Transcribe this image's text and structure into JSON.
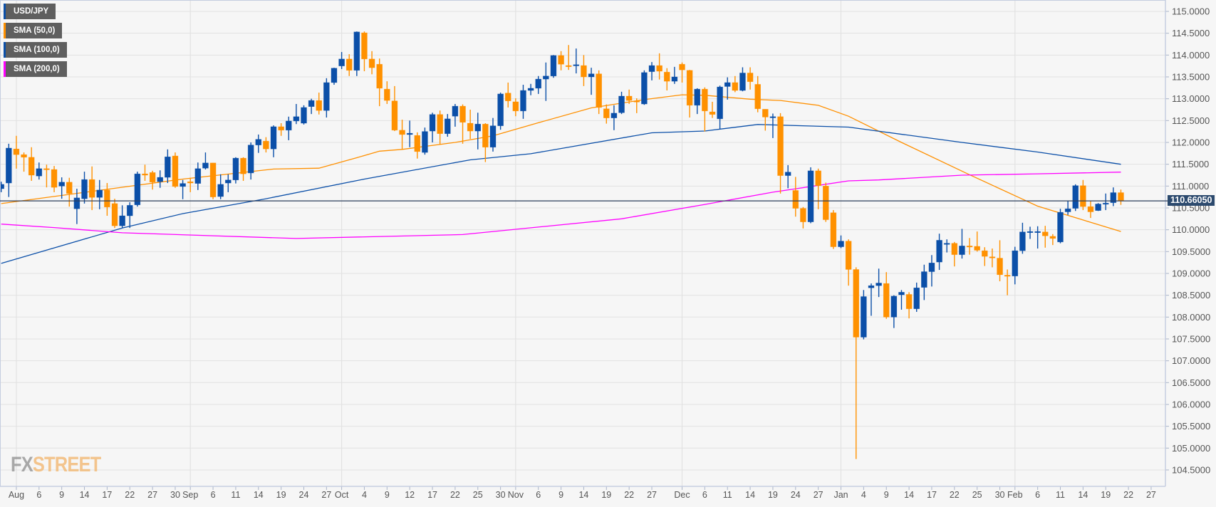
{
  "legend": [
    {
      "label": "USD/JPY",
      "color": "#0b4fa8"
    },
    {
      "label": "SMA (50,0)",
      "color": "#ff9000"
    },
    {
      "label": "SMA (100,0)",
      "color": "#0b4fa8"
    },
    {
      "label": "SMA (200,0)",
      "color": "#ff00ff"
    }
  ],
  "logo": {
    "part1": "FX",
    "part2": "STREET"
  },
  "current_price_label": "110.66050",
  "chart_data": {
    "type": "candlestick",
    "symbol": "USD/JPY",
    "current_price": 110.6605,
    "ylim": [
      104.5,
      115.0
    ],
    "y_ticks": [
      115.0,
      114.5,
      114.0,
      113.5,
      113.0,
      112.5,
      112.0,
      111.5,
      111.0,
      110.5,
      110.0,
      109.5,
      109.0,
      108.5,
      108.0,
      107.5,
      107.0,
      106.5,
      106.0,
      105.5,
      105.0,
      104.5
    ],
    "y_tick_labels": [
      "115.0000",
      "114.5000",
      "114.0000",
      "113.5000",
      "113.0000",
      "112.5000",
      "112.0000",
      "111.5000",
      "111.0000",
      "110.5000",
      "110.0000",
      "109.5000",
      "109.0000",
      "108.5000",
      "108.0000",
      "107.5000",
      "107.0000",
      "106.5000",
      "106.0000",
      "105.5000",
      "105.0000",
      "104.5000"
    ],
    "x_ticks": [
      {
        "label": "Aug",
        "at": 2,
        "month": true
      },
      {
        "label": "6",
        "at": 5
      },
      {
        "label": "9",
        "at": 8
      },
      {
        "label": "14",
        "at": 11
      },
      {
        "label": "17",
        "at": 14
      },
      {
        "label": "22",
        "at": 17
      },
      {
        "label": "27",
        "at": 20
      },
      {
        "label": "30",
        "at": 23
      },
      {
        "label": "Sep",
        "at": 25,
        "month": true
      },
      {
        "label": "6",
        "at": 28
      },
      {
        "label": "11",
        "at": 31
      },
      {
        "label": "14",
        "at": 34
      },
      {
        "label": "19",
        "at": 37
      },
      {
        "label": "24",
        "at": 40
      },
      {
        "label": "27",
        "at": 43
      },
      {
        "label": "Oct",
        "at": 45,
        "month": true
      },
      {
        "label": "4",
        "at": 48
      },
      {
        "label": "9",
        "at": 51
      },
      {
        "label": "12",
        "at": 54
      },
      {
        "label": "17",
        "at": 57
      },
      {
        "label": "22",
        "at": 60
      },
      {
        "label": "25",
        "at": 63
      },
      {
        "label": "30",
        "at": 66
      },
      {
        "label": "Nov",
        "at": 68,
        "month": true
      },
      {
        "label": "6",
        "at": 71
      },
      {
        "label": "9",
        "at": 74
      },
      {
        "label": "14",
        "at": 77
      },
      {
        "label": "19",
        "at": 80
      },
      {
        "label": "22",
        "at": 83
      },
      {
        "label": "27",
        "at": 86
      },
      {
        "label": "Dec",
        "at": 90,
        "month": true
      },
      {
        "label": "6",
        "at": 93
      },
      {
        "label": "11",
        "at": 96
      },
      {
        "label": "14",
        "at": 99
      },
      {
        "label": "19",
        "at": 102
      },
      {
        "label": "24",
        "at": 105
      },
      {
        "label": "27",
        "at": 108
      },
      {
        "label": "Jan",
        "at": 111,
        "month": true
      },
      {
        "label": "4",
        "at": 114
      },
      {
        "label": "9",
        "at": 117
      },
      {
        "label": "14",
        "at": 120
      },
      {
        "label": "17",
        "at": 123
      },
      {
        "label": "22",
        "at": 126
      },
      {
        "label": "25",
        "at": 129
      },
      {
        "label": "30",
        "at": 132
      },
      {
        "label": "Feb",
        "at": 134,
        "month": true
      },
      {
        "label": "6",
        "at": 137
      },
      {
        "label": "11",
        "at": 140
      },
      {
        "label": "14",
        "at": 143
      },
      {
        "label": "19",
        "at": 146
      },
      {
        "label": "22",
        "at": 149
      },
      {
        "label": "27",
        "at": 152
      }
    ],
    "ohlc_fields": [
      "open",
      "high",
      "low",
      "close"
    ],
    "candles": [
      [
        110.94,
        111.1,
        110.86,
        111.04
      ],
      [
        111.07,
        111.97,
        110.75,
        111.87
      ],
      [
        111.85,
        112.15,
        111.4,
        111.72
      ],
      [
        111.72,
        111.77,
        111.33,
        111.66
      ],
      [
        111.66,
        111.89,
        111.12,
        111.25
      ],
      [
        111.23,
        111.54,
        111.15,
        111.4
      ],
      [
        111.4,
        111.49,
        110.97,
        111.38
      ],
      [
        111.38,
        111.46,
        110.86,
        110.97
      ],
      [
        111.0,
        111.2,
        110.71,
        111.09
      ],
      [
        111.09,
        111.19,
        110.53,
        110.83
      ],
      [
        110.48,
        110.94,
        110.13,
        110.73
      ],
      [
        110.71,
        111.33,
        110.6,
        111.15
      ],
      [
        111.15,
        111.45,
        110.45,
        110.74
      ],
      [
        110.74,
        111.14,
        110.47,
        110.91
      ],
      [
        110.91,
        111.07,
        110.32,
        110.52
      ],
      [
        110.6,
        110.71,
        110.04,
        110.09
      ],
      [
        110.09,
        110.56,
        110.04,
        110.32
      ],
      [
        110.32,
        110.63,
        110.04,
        110.56
      ],
      [
        110.57,
        111.33,
        110.53,
        111.28
      ],
      [
        111.28,
        111.49,
        111.12,
        111.25
      ],
      [
        111.31,
        111.35,
        110.92,
        111.09
      ],
      [
        111.1,
        111.36,
        110.96,
        111.2
      ],
      [
        111.2,
        111.84,
        111.07,
        111.67
      ],
      [
        111.69,
        111.77,
        110.96,
        110.99
      ],
      [
        110.99,
        111.14,
        110.7,
        111.06
      ],
      [
        111.1,
        111.19,
        110.86,
        111.07
      ],
      [
        111.06,
        111.54,
        110.91,
        111.4
      ],
      [
        111.41,
        111.77,
        111.38,
        111.53
      ],
      [
        111.53,
        111.53,
        110.7,
        110.75
      ],
      [
        110.76,
        111.27,
        110.7,
        111.04
      ],
      [
        111.07,
        111.27,
        110.86,
        111.14
      ],
      [
        111.14,
        111.66,
        111.06,
        111.64
      ],
      [
        111.64,
        111.66,
        111.12,
        111.28
      ],
      [
        111.3,
        112.0,
        111.15,
        111.94
      ],
      [
        111.94,
        112.18,
        111.76,
        112.07
      ],
      [
        112.03,
        112.12,
        111.77,
        111.85
      ],
      [
        111.85,
        112.39,
        111.66,
        112.36
      ],
      [
        112.36,
        112.44,
        112.15,
        112.28
      ],
      [
        112.28,
        112.59,
        112.05,
        112.49
      ],
      [
        112.49,
        112.88,
        112.42,
        112.59
      ],
      [
        112.44,
        112.85,
        112.41,
        112.8
      ],
      [
        112.82,
        113.0,
        112.65,
        112.96
      ],
      [
        112.96,
        113.14,
        112.64,
        112.73
      ],
      [
        112.73,
        113.47,
        112.57,
        113.37
      ],
      [
        113.37,
        113.71,
        113.32,
        113.7
      ],
      [
        113.75,
        114.07,
        113.68,
        113.91
      ],
      [
        113.91,
        114.02,
        113.52,
        113.65
      ],
      [
        113.65,
        114.54,
        113.52,
        114.53
      ],
      [
        114.51,
        114.54,
        113.63,
        113.91
      ],
      [
        113.91,
        114.09,
        113.56,
        113.71
      ],
      [
        113.79,
        113.92,
        112.83,
        113.24
      ],
      [
        113.22,
        113.4,
        112.88,
        112.96
      ],
      [
        112.95,
        113.29,
        112.26,
        112.28
      ],
      [
        112.28,
        112.52,
        111.84,
        112.18
      ],
      [
        112.18,
        112.5,
        111.89,
        112.21
      ],
      [
        112.16,
        112.23,
        111.63,
        111.79
      ],
      [
        111.77,
        112.34,
        111.72,
        112.25
      ],
      [
        112.26,
        112.68,
        112.0,
        112.64
      ],
      [
        112.64,
        112.73,
        111.95,
        112.2
      ],
      [
        112.2,
        112.65,
        112.13,
        112.54
      ],
      [
        112.6,
        112.88,
        112.36,
        112.83
      ],
      [
        112.83,
        112.87,
        111.97,
        112.46
      ],
      [
        112.44,
        112.75,
        112.08,
        112.26
      ],
      [
        112.26,
        112.68,
        111.84,
        112.42
      ],
      [
        112.42,
        112.44,
        111.55,
        111.89
      ],
      [
        111.89,
        112.56,
        111.79,
        112.38
      ],
      [
        112.38,
        113.14,
        112.29,
        113.11
      ],
      [
        113.13,
        113.37,
        112.8,
        112.95
      ],
      [
        112.93,
        113.01,
        112.6,
        112.72
      ],
      [
        112.72,
        113.32,
        112.54,
        113.19
      ],
      [
        113.19,
        113.34,
        113.08,
        113.24
      ],
      [
        113.24,
        113.52,
        113.11,
        113.45
      ],
      [
        113.45,
        113.83,
        112.95,
        113.52
      ],
      [
        113.52,
        114.0,
        113.48,
        113.99
      ],
      [
        113.99,
        114.09,
        113.65,
        113.79
      ],
      [
        113.76,
        114.23,
        113.66,
        113.74
      ],
      [
        113.76,
        114.15,
        113.58,
        113.78
      ],
      [
        113.76,
        114.0,
        113.29,
        113.5
      ],
      [
        113.5,
        113.71,
        113.09,
        113.57
      ],
      [
        113.57,
        113.65,
        112.65,
        112.8
      ],
      [
        112.77,
        112.87,
        112.43,
        112.56
      ],
      [
        112.56,
        112.85,
        112.28,
        112.67
      ],
      [
        112.68,
        113.16,
        112.65,
        113.06
      ],
      [
        113.06,
        113.21,
        112.88,
        112.96
      ],
      [
        112.95,
        113.01,
        112.67,
        112.93
      ],
      [
        112.88,
        113.65,
        112.86,
        113.6
      ],
      [
        113.62,
        113.84,
        113.42,
        113.76
      ],
      [
        113.76,
        114.04,
        113.44,
        113.63
      ],
      [
        113.61,
        113.7,
        113.19,
        113.4
      ],
      [
        113.4,
        113.73,
        113.34,
        113.5
      ],
      [
        113.79,
        113.83,
        113.37,
        113.66
      ],
      [
        113.65,
        113.66,
        112.57,
        112.85
      ],
      [
        112.85,
        113.24,
        112.65,
        113.22
      ],
      [
        113.22,
        113.26,
        112.25,
        112.72
      ],
      [
        112.7,
        112.93,
        112.56,
        112.64
      ],
      [
        112.54,
        113.3,
        112.3,
        113.27
      ],
      [
        113.28,
        113.49,
        112.98,
        113.37
      ],
      [
        113.37,
        113.52,
        113.15,
        113.19
      ],
      [
        113.19,
        113.72,
        113.17,
        113.59
      ],
      [
        113.59,
        113.72,
        113.21,
        113.39
      ],
      [
        113.33,
        113.52,
        112.69,
        112.77
      ],
      [
        112.76,
        112.76,
        112.27,
        112.58
      ],
      [
        112.57,
        112.66,
        112.1,
        112.59
      ],
      [
        112.59,
        112.67,
        110.83,
        111.24
      ],
      [
        111.24,
        111.48,
        110.95,
        111.32
      ],
      [
        110.9,
        111.21,
        110.3,
        110.49
      ],
      [
        110.49,
        110.52,
        110.03,
        110.18
      ],
      [
        110.18,
        111.43,
        110.15,
        111.35
      ],
      [
        111.35,
        111.4,
        110.47,
        111.01
      ],
      [
        111.0,
        111.08,
        110.18,
        110.23
      ],
      [
        110.39,
        110.45,
        109.56,
        109.61
      ],
      [
        109.61,
        109.87,
        109.58,
        109.74
      ],
      [
        109.74,
        109.78,
        108.72,
        109.09
      ],
      [
        109.09,
        109.14,
        104.75,
        107.54
      ],
      [
        107.54,
        108.62,
        107.49,
        108.47
      ],
      [
        108.67,
        108.77,
        108.03,
        108.72
      ],
      [
        108.72,
        109.11,
        108.46,
        108.78
      ],
      [
        108.77,
        109.03,
        107.96,
        108.0
      ],
      [
        108.0,
        108.5,
        107.75,
        108.48
      ],
      [
        108.51,
        108.62,
        108.17,
        108.57
      ],
      [
        108.52,
        108.57,
        107.97,
        108.19
      ],
      [
        108.19,
        108.79,
        108.12,
        108.67
      ],
      [
        108.68,
        109.2,
        108.39,
        109.04
      ],
      [
        109.04,
        109.42,
        108.7,
        109.24
      ],
      [
        109.26,
        109.91,
        109.08,
        109.76
      ],
      [
        109.67,
        109.78,
        109.48,
        109.69
      ],
      [
        109.69,
        109.72,
        109.16,
        109.43
      ],
      [
        109.43,
        110.02,
        109.34,
        109.63
      ],
      [
        109.63,
        109.81,
        109.43,
        109.61
      ],
      [
        109.62,
        109.96,
        109.5,
        109.53
      ],
      [
        109.52,
        109.6,
        109.17,
        109.39
      ],
      [
        109.38,
        109.57,
        109.14,
        109.36
      ],
      [
        109.35,
        109.76,
        108.82,
        108.97
      ],
      [
        108.96,
        109.09,
        108.5,
        108.94
      ],
      [
        108.94,
        109.61,
        108.75,
        109.52
      ],
      [
        109.52,
        110.16,
        109.45,
        109.95
      ],
      [
        109.95,
        110.07,
        109.79,
        109.96
      ],
      [
        109.96,
        110.08,
        109.57,
        109.96
      ],
      [
        109.95,
        110.09,
        109.59,
        109.86
      ],
      [
        109.85,
        109.9,
        109.65,
        109.8
      ],
      [
        109.72,
        110.48,
        109.69,
        110.4
      ],
      [
        110.41,
        110.66,
        110.34,
        110.48
      ],
      [
        110.49,
        111.04,
        110.43,
        111.01
      ],
      [
        111.01,
        111.14,
        110.45,
        110.53
      ],
      [
        110.53,
        110.66,
        110.27,
        110.41
      ],
      [
        110.44,
        110.61,
        110.43,
        110.59
      ],
      [
        110.6,
        110.83,
        110.45,
        110.61
      ],
      [
        110.62,
        110.97,
        110.54,
        110.85
      ],
      [
        110.85,
        110.92,
        110.57,
        110.66
      ]
    ],
    "series": [
      {
        "name": "SMA (50,0)",
        "color": "#ff9000",
        "points": [
          [
            0,
            110.6
          ],
          [
            24,
            111.16
          ],
          [
            36,
            111.39
          ],
          [
            42,
            111.41
          ],
          [
            47,
            111.65
          ],
          [
            50,
            111.8
          ],
          [
            53,
            111.84
          ],
          [
            60,
            112.0
          ],
          [
            65,
            112.15
          ],
          [
            71,
            112.45
          ],
          [
            78,
            112.79
          ],
          [
            85,
            112.98
          ],
          [
            90,
            113.09
          ],
          [
            93,
            113.08
          ],
          [
            99,
            112.99
          ],
          [
            103,
            112.96
          ],
          [
            108,
            112.85
          ],
          [
            112,
            112.6
          ],
          [
            119,
            112.0
          ],
          [
            128,
            111.26
          ],
          [
            135,
            110.7
          ],
          [
            137,
            110.54
          ],
          [
            148,
            109.96
          ]
        ]
      },
      {
        "name": "SMA (100,0)",
        "color": "#0b4fa8",
        "points": [
          [
            0,
            109.23
          ],
          [
            16,
            110.04
          ],
          [
            24,
            110.37
          ],
          [
            35,
            110.71
          ],
          [
            48,
            111.16
          ],
          [
            62,
            111.6
          ],
          [
            70,
            111.74
          ],
          [
            86,
            112.22
          ],
          [
            93,
            112.26
          ],
          [
            100,
            112.41
          ],
          [
            112,
            112.35
          ],
          [
            127,
            112.0
          ],
          [
            137,
            111.78
          ],
          [
            148,
            111.5
          ]
        ]
      },
      {
        "name": "SMA (200,0)",
        "color": "#ff00ff",
        "points": [
          [
            0,
            110.13
          ],
          [
            7,
            110.05
          ],
          [
            16,
            109.93
          ],
          [
            39,
            109.8
          ],
          [
            61,
            109.89
          ],
          [
            82,
            110.25
          ],
          [
            93,
            110.58
          ],
          [
            102,
            110.86
          ],
          [
            112,
            111.12
          ],
          [
            116,
            111.14
          ],
          [
            127,
            111.25
          ],
          [
            137,
            111.28
          ],
          [
            148,
            111.32
          ]
        ]
      }
    ],
    "colors": {
      "up": "#0b4fa8",
      "down": "#ff9100",
      "price_line": "#2c3e5c",
      "grid": "#e2e2e2"
    }
  }
}
